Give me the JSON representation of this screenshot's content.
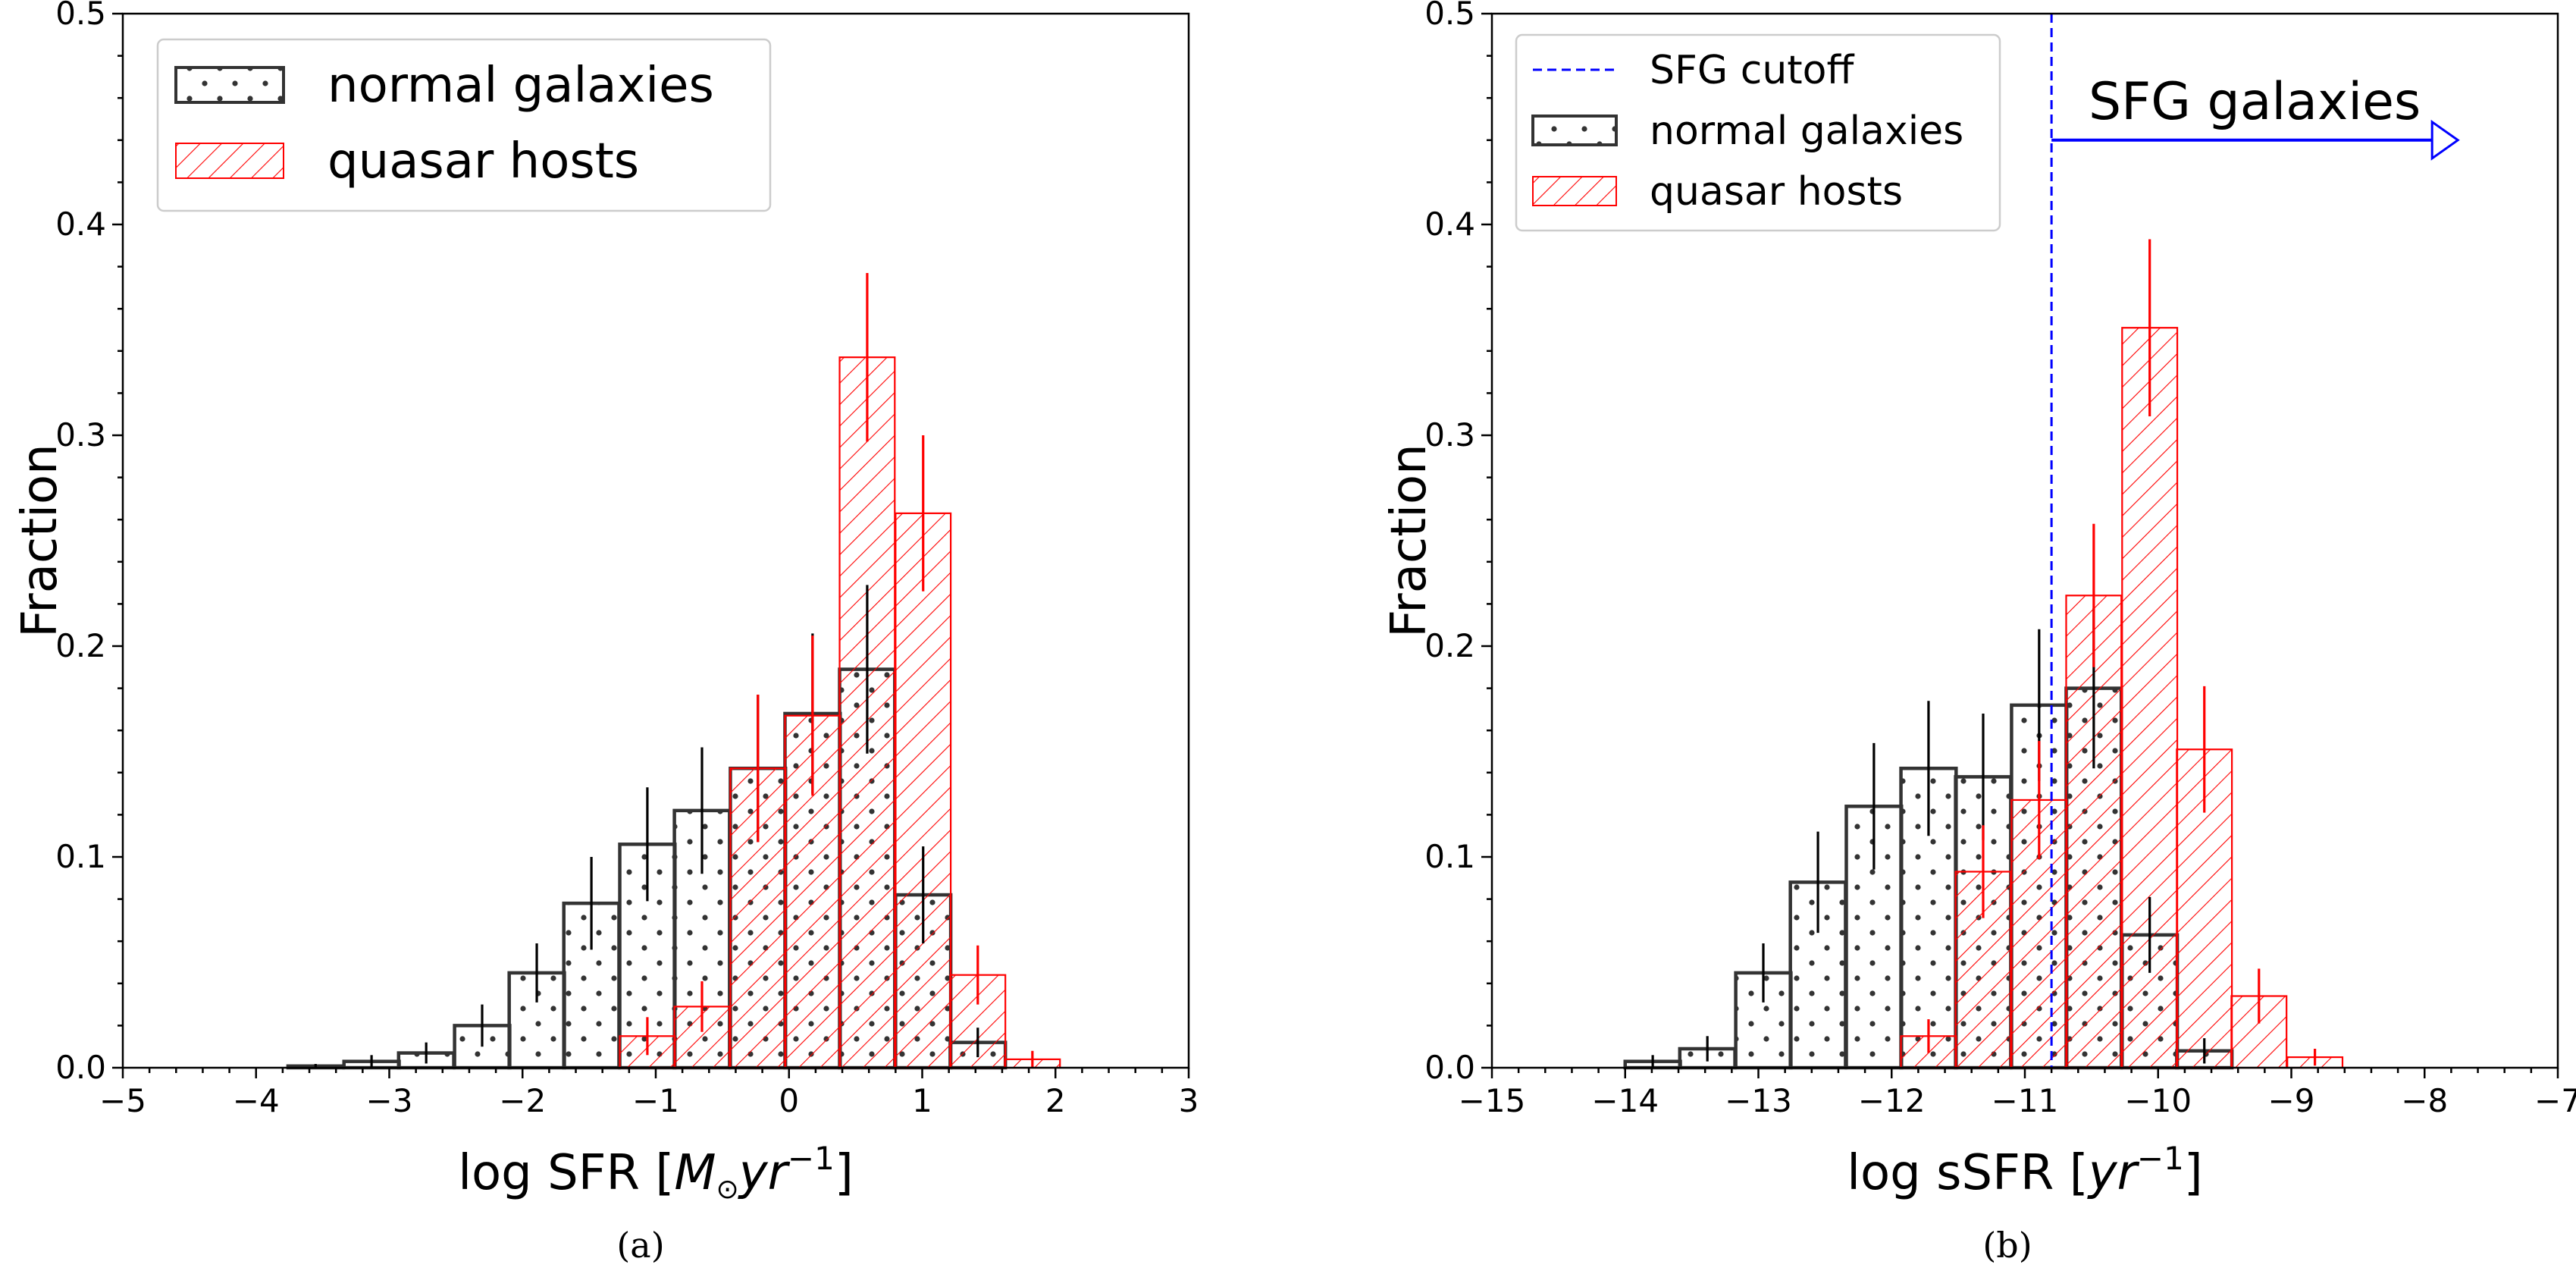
{
  "colors": {
    "normal": "#333333",
    "quasar": "#ff0000",
    "cutoff": "#0000ff",
    "axis": "#000000"
  },
  "chart_data": [
    {
      "type": "bar",
      "panel_label": "(a)",
      "xlabel": "log SFR [M⊙yr⁻¹]",
      "xlabel_parts": {
        "prefix": "log SFR [",
        "var": "M",
        "sub": "⊙",
        "unit": "yr",
        "sup": "−1",
        "suffix": "]"
      },
      "ylabel": "Fraction",
      "xlim": [
        -5,
        3
      ],
      "ylim": [
        0,
        0.5
      ],
      "xticks": [
        -5,
        -4,
        -3,
        -2,
        -1,
        0,
        1,
        2,
        3
      ],
      "xtick_labels": [
        "−5",
        "−4",
        "−3",
        "−2",
        "−1",
        "0",
        "1",
        "2",
        "3"
      ],
      "yticks": [
        0,
        0.1,
        0.2,
        0.3,
        0.4,
        0.5
      ],
      "ytick_labels": [
        "0.0",
        "0.1",
        "0.2",
        "0.3",
        "0.4",
        "0.5"
      ],
      "legend": {
        "position": "upper-left",
        "entries": [
          "normal galaxies",
          "quasar hosts"
        ]
      },
      "series": [
        {
          "name": "normal galaxies",
          "bin_width": 0.414,
          "bin_starts": [
            -4.17,
            -3.76,
            -3.34,
            -2.93,
            -2.51,
            -2.1,
            -1.69,
            -1.27,
            -0.86,
            -0.44,
            -0.03,
            0.38,
            0.8,
            1.21
          ],
          "values": [
            0.0,
            0.0008,
            0.003,
            0.007,
            0.02,
            0.045,
            0.078,
            0.106,
            0.122,
            0.142,
            0.168,
            0.189,
            0.082,
            0.012
          ],
          "errors": [
            0.0,
            0.001,
            0.003,
            0.005,
            0.01,
            0.014,
            0.022,
            0.027,
            0.03,
            0.035,
            0.038,
            0.04,
            0.023,
            0.007
          ]
        },
        {
          "name": "quasar hosts",
          "bin_width": 0.414,
          "bin_starts": [
            -1.27,
            -0.86,
            -0.44,
            -0.03,
            0.38,
            0.8,
            1.21,
            1.62
          ],
          "values": [
            0.015,
            0.029,
            0.142,
            0.167,
            0.337,
            0.263,
            0.044,
            0.004
          ],
          "errors": [
            0.009,
            0.012,
            0.035,
            0.038,
            0.04,
            0.037,
            0.014,
            0.004
          ]
        }
      ]
    },
    {
      "type": "bar",
      "panel_label": "(b)",
      "xlabel": "log sSFR [yr⁻¹]",
      "xlabel_parts": {
        "prefix": "log sSFR [",
        "unit": "yr",
        "sup": "−1",
        "suffix": "]"
      },
      "ylabel": "Fraction",
      "xlim": [
        -15,
        -7
      ],
      "ylim": [
        0,
        0.5
      ],
      "xticks": [
        -15,
        -14,
        -13,
        -12,
        -11,
        -10,
        -9,
        -8,
        -7
      ],
      "xtick_labels": [
        "−15",
        "−14",
        "−13",
        "−12",
        "−11",
        "−10",
        "−9",
        "−8",
        "−7"
      ],
      "yticks": [
        0,
        0.1,
        0.2,
        0.3,
        0.4,
        0.5
      ],
      "ytick_labels": [
        "0.0",
        "0.1",
        "0.2",
        "0.3",
        "0.4",
        "0.5"
      ],
      "legend": {
        "position": "upper-left",
        "entries": [
          "SFG cutoff",
          "normal galaxies",
          "quasar hosts"
        ]
      },
      "cutoff": {
        "label": "SFG cutoff",
        "x": -10.8
      },
      "annotation": {
        "text": "SFG galaxies",
        "arrow_from_x": -10.8,
        "arrow_to_x": -7.75,
        "y": 0.44
      },
      "series": [
        {
          "name": "normal galaxies",
          "bin_width": 0.414,
          "bin_starts": [
            -14.0,
            -13.59,
            -13.17,
            -12.76,
            -12.34,
            -11.93,
            -11.52,
            -11.1,
            -10.69,
            -10.27,
            -9.86,
            -9.45,
            -9.03,
            -8.62
          ],
          "values": [
            0.003,
            0.009,
            0.045,
            0.088,
            0.124,
            0.142,
            0.138,
            0.172,
            0.18,
            0.063,
            0.008,
            0.0,
            0.0,
            0.0
          ],
          "errors": [
            0.003,
            0.006,
            0.014,
            0.024,
            0.03,
            0.032,
            0.03,
            0.036,
            0.038,
            0.018,
            0.006,
            0.0,
            0.0,
            0.0
          ]
        },
        {
          "name": "quasar hosts",
          "bin_width": 0.414,
          "bin_starts": [
            -11.93,
            -11.52,
            -11.1,
            -10.69,
            -10.27,
            -9.86,
            -9.45,
            -9.03,
            -8.62
          ],
          "values": [
            0.015,
            0.093,
            0.127,
            0.224,
            0.351,
            0.151,
            0.034,
            0.005,
            0.0
          ],
          "errors": [
            0.008,
            0.022,
            0.028,
            0.034,
            0.042,
            0.03,
            0.013,
            0.004,
            0.0
          ]
        }
      ]
    }
  ]
}
